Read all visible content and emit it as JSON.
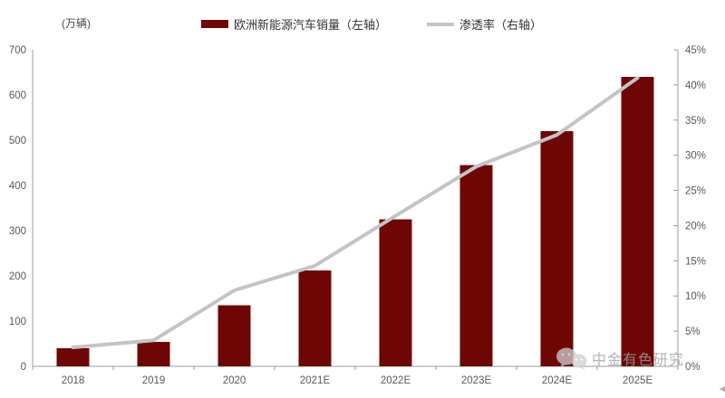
{
  "chart": {
    "unit_label": "(万辆)",
    "legend": [
      {
        "label": "欧洲新能源汽车销量（左轴）",
        "type": "bar",
        "color": "#6f0606"
      },
      {
        "label": "渗透率（右轴）",
        "type": "line",
        "color": "#c4c4c4"
      }
    ],
    "axis_color": "#9b9b9b",
    "tick_text_color": "#595959"
  },
  "watermark": {
    "logo": "wechat-logo-icon",
    "text": "中金有色研究"
  },
  "corner_glyph": "◀",
  "chart_data": {
    "type": "bar",
    "categories": [
      "2018",
      "2019",
      "2020",
      "2021E",
      "2022E",
      "2023E",
      "2024E",
      "2025E"
    ],
    "series": [
      {
        "name": "欧洲新能源汽车销量（左轴）",
        "type": "bar",
        "axis": "left",
        "values": [
          40,
          54,
          135,
          212,
          325,
          445,
          520,
          640
        ],
        "color": "#6f0606"
      },
      {
        "name": "渗透率（右轴）",
        "type": "line",
        "axis": "right",
        "values": [
          2.7,
          3.7,
          10.8,
          14.3,
          21.4,
          28.4,
          32.9,
          41.0
        ],
        "color": "#c4c4c4"
      }
    ],
    "left_axis": {
      "min": 0,
      "max": 700,
      "step": 100,
      "unit": "万辆"
    },
    "right_axis": {
      "min": 0,
      "max": 45,
      "step": 5,
      "unit": "%"
    },
    "grid": false,
    "legend_position": "top"
  }
}
